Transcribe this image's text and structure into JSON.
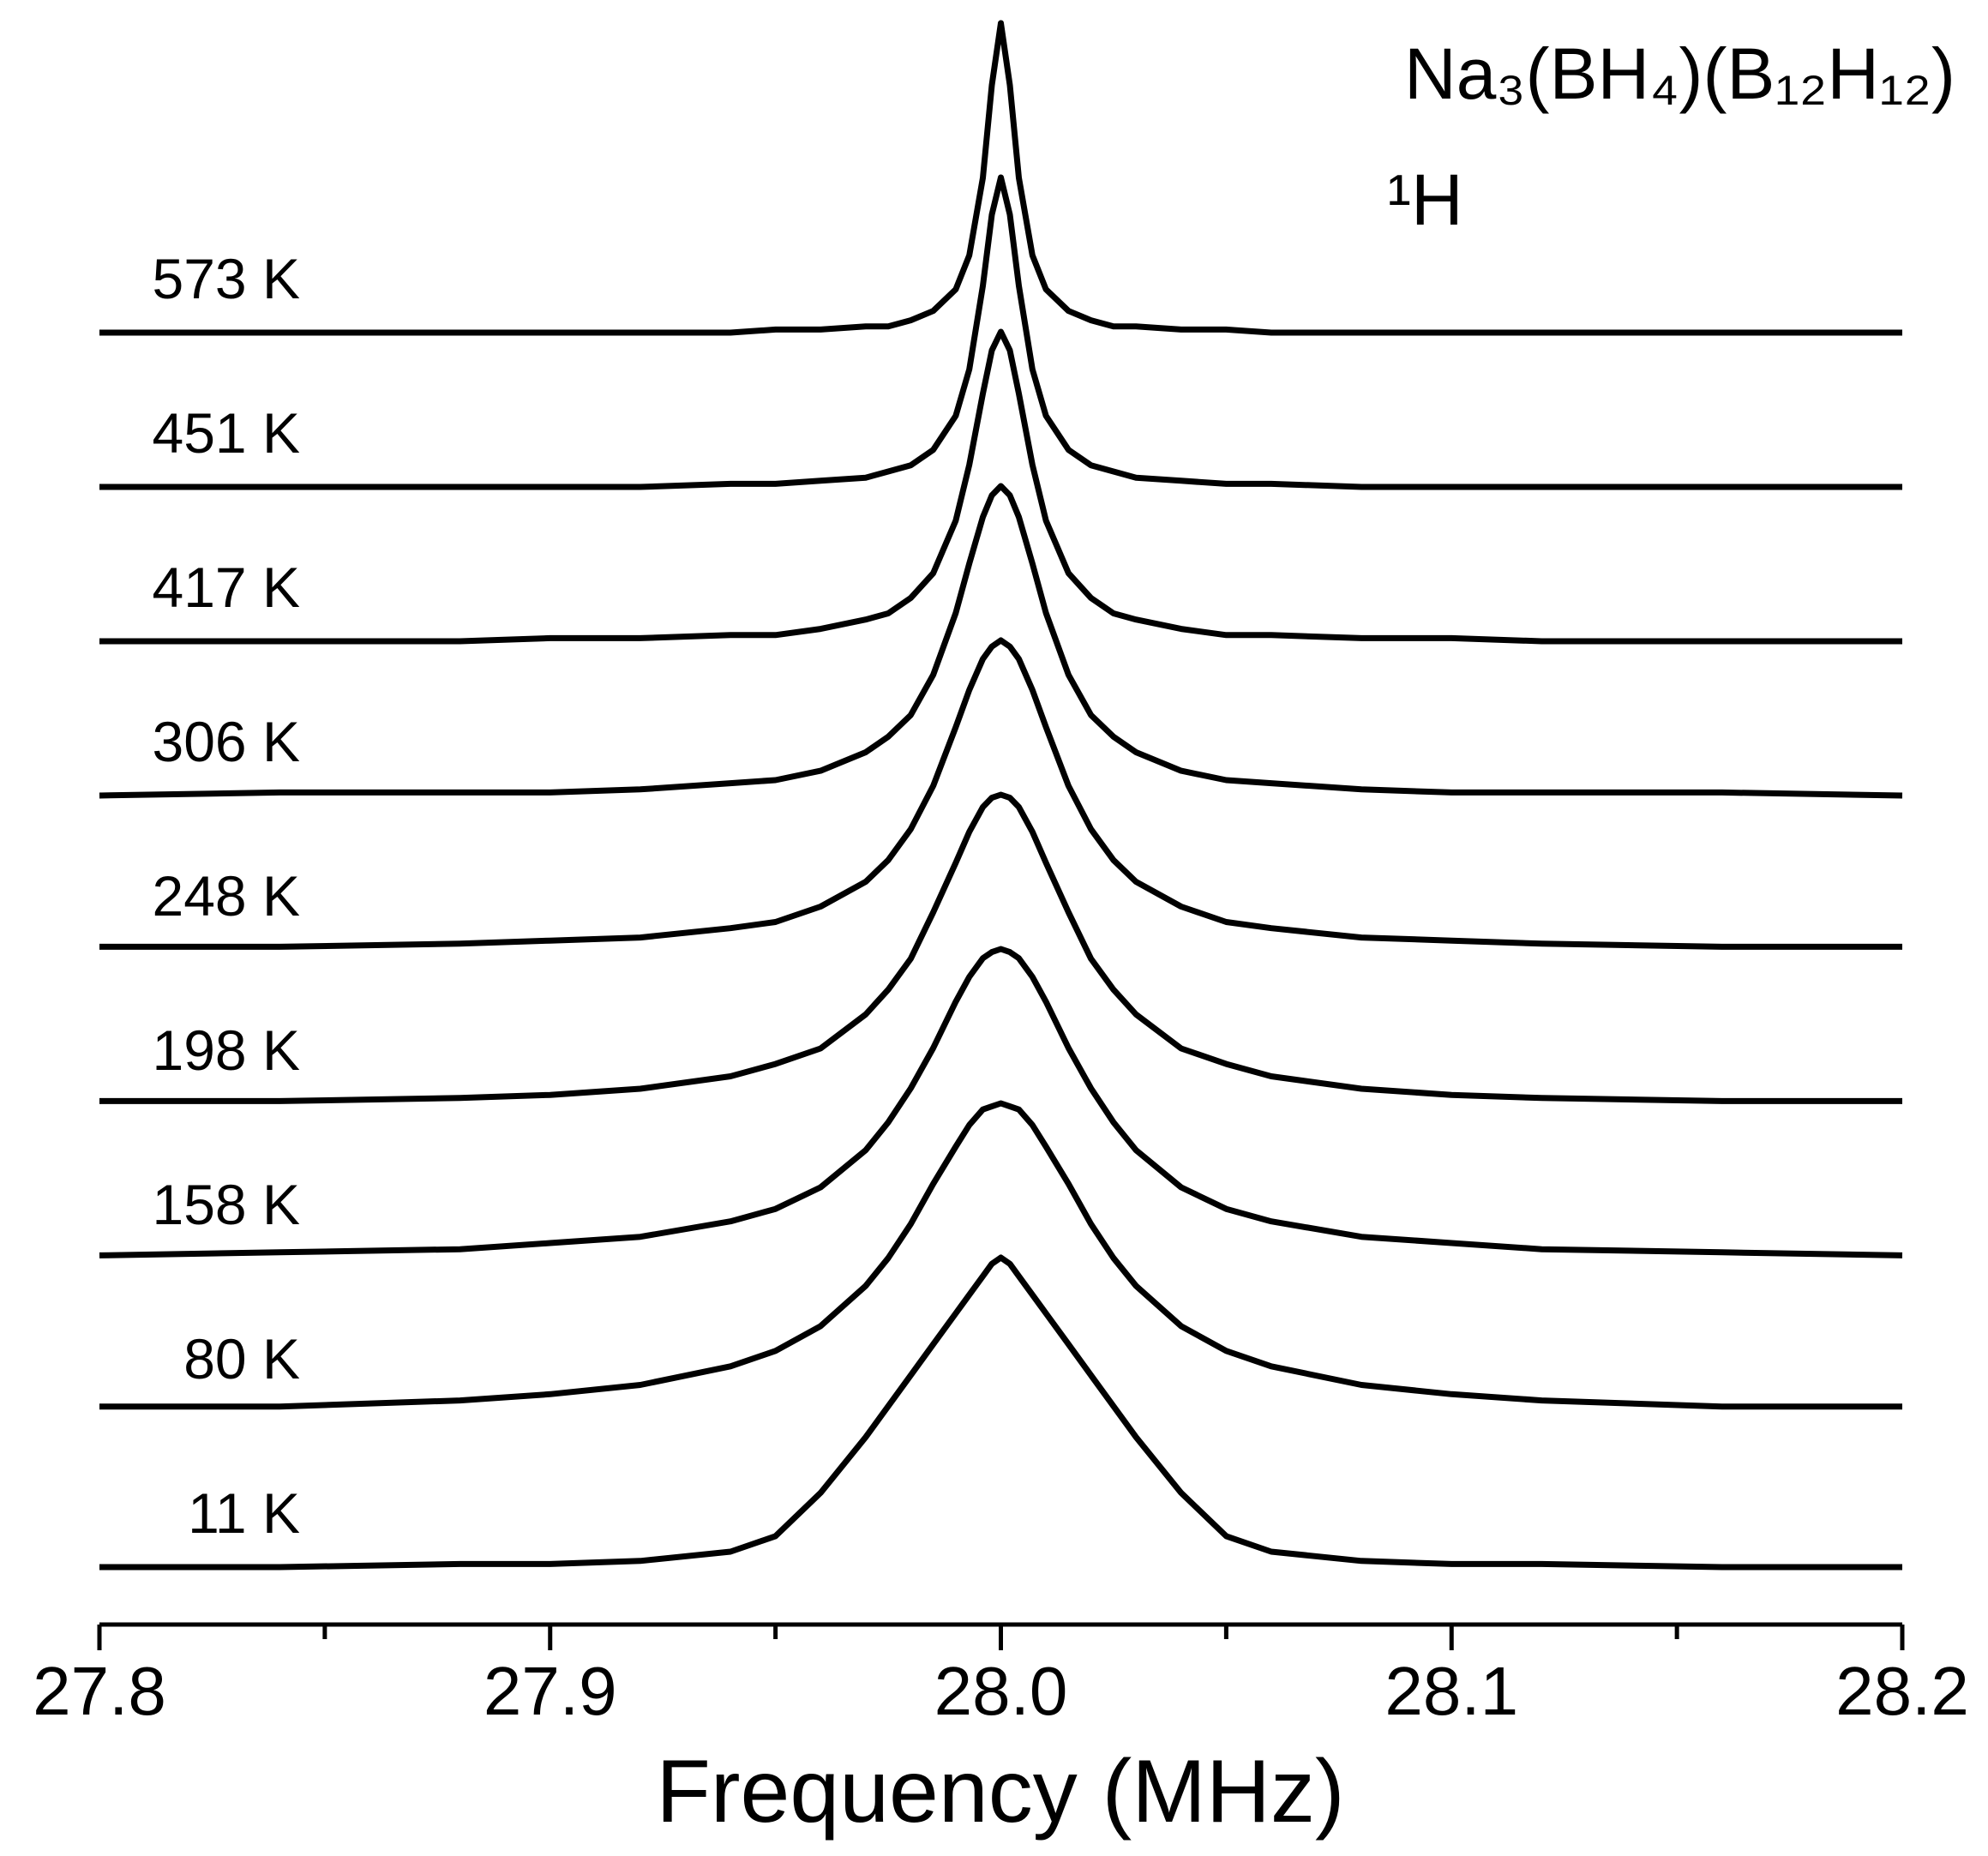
{
  "chart_data": {
    "type": "stacked-line",
    "annotations": [
      "Na₃(BH₄)(B₁₂H₁₂)",
      "¹H"
    ],
    "x_label": "Frequency (MHz)",
    "xlim": [
      27.8,
      28.2
    ],
    "xticks": [
      27.8,
      27.9,
      {
        "value": 28.0,
        "label": "28.0"
      },
      28.1,
      28.2
    ],
    "xminorticks": [
      27.85,
      27.95,
      28.05,
      28.15
    ],
    "x": [
      27.8,
      27.84,
      27.88,
      27.9,
      27.92,
      27.94,
      27.95,
      27.96,
      27.97,
      27.975,
      27.98,
      27.985,
      27.99,
      27.993,
      27.996,
      27.998,
      28.0,
      28.002,
      28.004,
      28.007,
      28.01,
      28.015,
      28.02,
      28.025,
      28.03,
      28.04,
      28.05,
      28.06,
      28.08,
      28.1,
      28.12,
      28.16,
      28.2
    ],
    "series": [
      {
        "name": "573 K",
        "color": "#000000",
        "values": [
          0,
          0,
          0,
          0,
          0,
          0,
          0.01,
          0.01,
          0.02,
          0.02,
          0.04,
          0.07,
          0.14,
          0.25,
          0.5,
          0.8,
          1,
          0.8,
          0.5,
          0.25,
          0.14,
          0.07,
          0.04,
          0.02,
          0.02,
          0.01,
          0.01,
          0,
          0,
          0,
          0,
          0,
          0
        ]
      },
      {
        "name": "451 K",
        "color": "#000000",
        "values": [
          0,
          0,
          0,
          0,
          0,
          0.01,
          0.01,
          0.02,
          0.03,
          0.05,
          0.07,
          0.12,
          0.23,
          0.38,
          0.65,
          0.88,
          1,
          0.88,
          0.65,
          0.38,
          0.23,
          0.12,
          0.07,
          0.05,
          0.03,
          0.02,
          0.01,
          0.01,
          0,
          0,
          0,
          0,
          0
        ]
      },
      {
        "name": "417 K",
        "color": "#000000",
        "values": [
          0,
          0,
          0,
          0.01,
          0.01,
          0.02,
          0.02,
          0.04,
          0.07,
          0.09,
          0.14,
          0.22,
          0.39,
          0.57,
          0.8,
          0.94,
          1,
          0.94,
          0.8,
          0.57,
          0.39,
          0.22,
          0.14,
          0.09,
          0.07,
          0.04,
          0.02,
          0.02,
          0.01,
          0.01,
          0,
          0,
          0
        ]
      },
      {
        "name": "306 K",
        "color": "#000000",
        "values": [
          0,
          0.01,
          0.01,
          0.01,
          0.02,
          0.04,
          0.05,
          0.08,
          0.14,
          0.19,
          0.26,
          0.39,
          0.59,
          0.75,
          0.9,
          0.97,
          1,
          0.97,
          0.9,
          0.75,
          0.59,
          0.39,
          0.26,
          0.19,
          0.14,
          0.08,
          0.05,
          0.04,
          0.02,
          0.01,
          0.01,
          0.01,
          0
        ]
      },
      {
        "name": "248 K",
        "color": "#000000",
        "values": [
          0.01,
          0.01,
          0.02,
          0.03,
          0.04,
          0.07,
          0.09,
          0.14,
          0.22,
          0.29,
          0.39,
          0.53,
          0.72,
          0.84,
          0.94,
          0.98,
          1,
          0.98,
          0.94,
          0.84,
          0.72,
          0.53,
          0.39,
          0.29,
          0.22,
          0.14,
          0.09,
          0.07,
          0.04,
          0.03,
          0.02,
          0.01,
          0.01
        ]
      },
      {
        "name": "198 K",
        "color": "#000000",
        "values": [
          0.01,
          0.01,
          0.02,
          0.03,
          0.05,
          0.09,
          0.13,
          0.18,
          0.29,
          0.37,
          0.47,
          0.62,
          0.78,
          0.88,
          0.96,
          0.99,
          1,
          0.99,
          0.96,
          0.88,
          0.78,
          0.62,
          0.47,
          0.37,
          0.29,
          0.18,
          0.13,
          0.09,
          0.05,
          0.03,
          0.02,
          0.01,
          0.01
        ]
      },
      {
        "name": "158 K",
        "color": "#000000",
        "values": [
          0.01,
          0.02,
          0.03,
          0.05,
          0.07,
          0.12,
          0.16,
          0.23,
          0.35,
          0.44,
          0.55,
          0.68,
          0.83,
          0.91,
          0.97,
          0.99,
          1,
          0.99,
          0.97,
          0.91,
          0.83,
          0.68,
          0.55,
          0.44,
          0.35,
          0.23,
          0.16,
          0.12,
          0.07,
          0.05,
          0.03,
          0.02,
          0.01
        ]
      },
      {
        "name": "80 K",
        "color": "#000000",
        "values": [
          0.02,
          0.02,
          0.04,
          0.06,
          0.09,
          0.15,
          0.2,
          0.28,
          0.41,
          0.5,
          0.61,
          0.74,
          0.86,
          0.93,
          0.98,
          0.99,
          1,
          0.99,
          0.98,
          0.93,
          0.86,
          0.74,
          0.61,
          0.5,
          0.41,
          0.28,
          0.2,
          0.15,
          0.09,
          0.06,
          0.04,
          0.02,
          0.02
        ]
      },
      {
        "name": "11 K",
        "color": "#000000",
        "values": [
          0,
          0,
          0.01,
          0.01,
          0.02,
          0.05,
          0.1,
          0.24,
          0.42,
          0.52,
          0.62,
          0.72,
          0.82,
          0.88,
          0.94,
          0.98,
          1,
          0.98,
          0.94,
          0.88,
          0.82,
          0.72,
          0.62,
          0.52,
          0.42,
          0.24,
          0.1,
          0.05,
          0.02,
          0.01,
          0.01,
          0,
          0
        ]
      }
    ]
  }
}
